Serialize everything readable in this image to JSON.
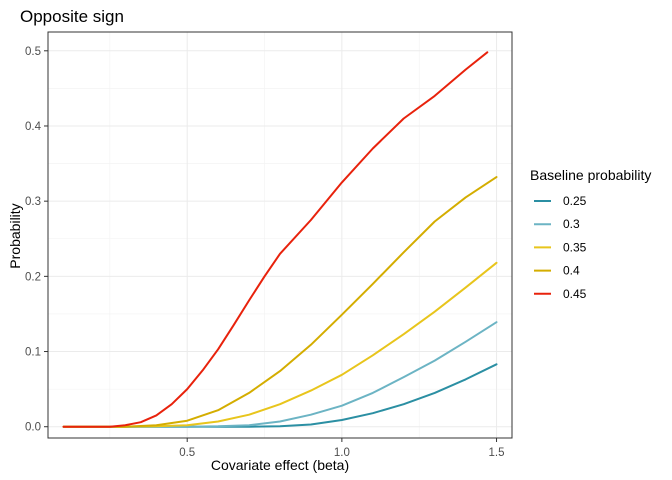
{
  "chart_data": {
    "type": "line",
    "title": "Opposite sign",
    "xlabel": "Covariate effect (beta)",
    "ylabel": "Probability",
    "xlim": [
      0.05,
      1.55
    ],
    "ylim": [
      -0.015,
      0.525
    ],
    "x_ticks": [
      0.5,
      1.0,
      1.5
    ],
    "x_tick_labels": [
      "0.5",
      "1.0",
      "1.5"
    ],
    "y_ticks": [
      0.0,
      0.1,
      0.2,
      0.3,
      0.4,
      0.5
    ],
    "y_tick_labels": [
      "0.0",
      "0.1",
      "0.2",
      "0.3",
      "0.4",
      "0.5"
    ],
    "grid": true,
    "legend": {
      "title": "Baseline probability",
      "position": "right"
    },
    "series": [
      {
        "name": "0.25",
        "color": "#2b8fa3",
        "x": [
          0.1,
          0.3,
          0.5,
          0.6,
          0.7,
          0.8,
          0.9,
          1.0,
          1.1,
          1.2,
          1.3,
          1.4,
          1.5
        ],
        "y": [
          0.0,
          0.0,
          0.0,
          0.0,
          0.0,
          0.0005,
          0.003,
          0.009,
          0.018,
          0.03,
          0.045,
          0.063,
          0.083
        ]
      },
      {
        "name": "0.3",
        "color": "#6cb4c4",
        "x": [
          0.1,
          0.3,
          0.5,
          0.6,
          0.7,
          0.8,
          0.9,
          1.0,
          1.1,
          1.2,
          1.3,
          1.4,
          1.5
        ],
        "y": [
          0.0,
          0.0,
          0.0,
          0.0005,
          0.002,
          0.007,
          0.016,
          0.028,
          0.045,
          0.066,
          0.088,
          0.113,
          0.139
        ]
      },
      {
        "name": "0.35",
        "color": "#e8c51c",
        "x": [
          0.1,
          0.3,
          0.4,
          0.5,
          0.6,
          0.7,
          0.8,
          0.9,
          1.0,
          1.1,
          1.2,
          1.3,
          1.4,
          1.5
        ],
        "y": [
          0.0,
          0.0,
          0.0005,
          0.002,
          0.007,
          0.016,
          0.03,
          0.048,
          0.069,
          0.095,
          0.123,
          0.153,
          0.185,
          0.218
        ]
      },
      {
        "name": "0.4",
        "color": "#d4ad00",
        "x": [
          0.1,
          0.3,
          0.4,
          0.5,
          0.6,
          0.7,
          0.8,
          0.9,
          1.0,
          1.1,
          1.2,
          1.3,
          1.4,
          1.5
        ],
        "y": [
          0.0,
          0.0,
          0.002,
          0.008,
          0.022,
          0.045,
          0.074,
          0.109,
          0.149,
          0.19,
          0.232,
          0.273,
          0.305,
          0.332
        ]
      },
      {
        "name": "0.45",
        "color": "#e8220c",
        "x": [
          0.1,
          0.25,
          0.3,
          0.35,
          0.4,
          0.45,
          0.5,
          0.55,
          0.6,
          0.65,
          0.7,
          0.75,
          0.8,
          0.9,
          1.0,
          1.1,
          1.2,
          1.3,
          1.4,
          1.47
        ],
        "y": [
          0.0,
          0.0,
          0.002,
          0.006,
          0.015,
          0.03,
          0.05,
          0.075,
          0.103,
          0.135,
          0.168,
          0.2,
          0.23,
          0.275,
          0.325,
          0.37,
          0.41,
          0.44,
          0.475,
          0.498
        ]
      }
    ]
  }
}
